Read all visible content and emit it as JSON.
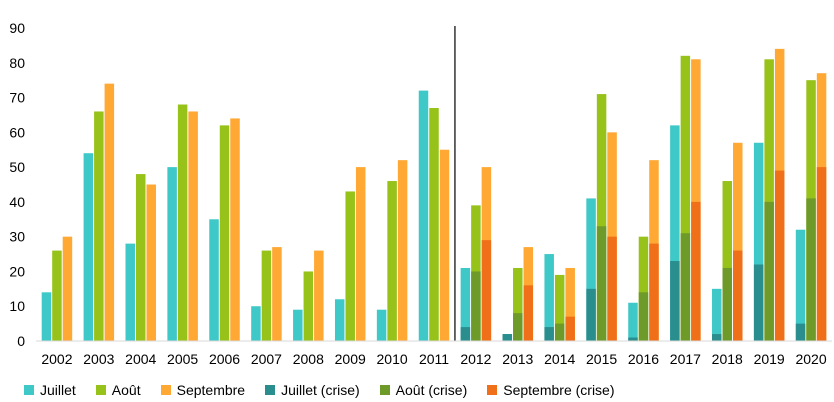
{
  "chart_data": {
    "type": "bar",
    "title": "",
    "xlabel": "",
    "ylabel": "",
    "ylim": [
      0,
      90
    ],
    "yticks": [
      0,
      10,
      20,
      30,
      40,
      50,
      60,
      70,
      80,
      90
    ],
    "grid": false,
    "legend_position": "bottom",
    "categories": [
      "2002",
      "2003",
      "2004",
      "2005",
      "2006",
      "2007",
      "2008",
      "2009",
      "2010",
      "2011",
      "2012",
      "2013",
      "2014",
      "2015",
      "2016",
      "2017",
      "2018",
      "2019",
      "2020"
    ],
    "divider_after": "2011",
    "series": [
      {
        "name": "Juillet",
        "color": "#3fc8c8",
        "values": [
          14,
          54,
          28,
          50,
          35,
          10,
          9,
          12,
          9,
          72,
          21,
          2,
          25,
          41,
          11,
          62,
          15,
          57,
          32
        ]
      },
      {
        "name": "Août",
        "color": "#97c21a",
        "values": [
          26,
          66,
          48,
          68,
          62,
          26,
          20,
          43,
          46,
          67,
          39,
          21,
          19,
          71,
          30,
          82,
          46,
          81,
          75
        ]
      },
      {
        "name": "Septembre",
        "color": "#ffa834",
        "values": [
          30,
          74,
          45,
          66,
          64,
          27,
          26,
          50,
          52,
          55,
          50,
          27,
          21,
          60,
          52,
          81,
          57,
          84,
          77
        ]
      },
      {
        "name": "Juillet (crise)",
        "color": "#2b8e8e",
        "values": [
          null,
          null,
          null,
          null,
          null,
          null,
          null,
          null,
          null,
          null,
          4,
          2,
          4,
          15,
          1,
          23,
          2,
          22,
          5
        ]
      },
      {
        "name": "Août (crise)",
        "color": "#6e9a2a",
        "values": [
          null,
          null,
          null,
          null,
          null,
          null,
          null,
          null,
          null,
          null,
          20,
          8,
          5,
          33,
          14,
          31,
          21,
          40,
          41
        ]
      },
      {
        "name": "Septembre (crise)",
        "color": "#f0701a",
        "values": [
          null,
          null,
          null,
          null,
          null,
          null,
          null,
          null,
          null,
          null,
          29,
          16,
          7,
          30,
          28,
          40,
          26,
          49,
          50
        ]
      }
    ]
  }
}
